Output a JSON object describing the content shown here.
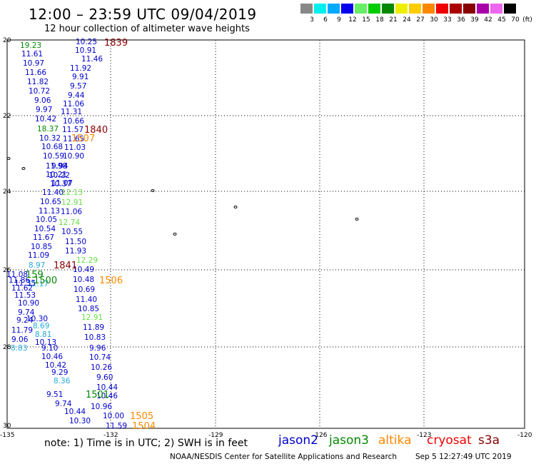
{
  "header": {
    "title": "12:00 – 23:59 UTC 09/04/2019",
    "subtitle": "12 hour collection of altimeter wave heights"
  },
  "legend": {
    "unit": "(ft)",
    "bins": [
      {
        "label": "3",
        "color": "#888888"
      },
      {
        "label": "6",
        "color": "#00eeee"
      },
      {
        "label": "9",
        "color": "#00aaff"
      },
      {
        "label": "12",
        "color": "#0000ee"
      },
      {
        "label": "15",
        "color": "#66ee66"
      },
      {
        "label": "18",
        "color": "#00cc00"
      },
      {
        "label": "21",
        "color": "#008800"
      },
      {
        "label": "24",
        "color": "#eeee00"
      },
      {
        "label": "27",
        "color": "#ffcc00"
      },
      {
        "label": "30",
        "color": "#ff8800"
      },
      {
        "label": "33",
        "color": "#ee0000"
      },
      {
        "label": "36",
        "color": "#aa0000"
      },
      {
        "label": "39",
        "color": "#880000"
      },
      {
        "label": "42",
        "color": "#aa00aa"
      },
      {
        "label": "45",
        "color": "#ee66ee"
      },
      {
        "label": "70",
        "color": "#000000"
      }
    ]
  },
  "axes": {
    "lon_ticks": [
      "-135",
      "-132",
      "-129",
      "-126",
      "-123",
      "-120"
    ],
    "lat_ticks": [
      "20",
      "22",
      "24",
      "26",
      "28",
      "30"
    ]
  },
  "colors": {
    "jason2": "#0000cc",
    "jason3": "#008800",
    "altika": "#ff8800",
    "cryosat": "#cc0000",
    "s3a": "#880000",
    "light_green": "#66dd44",
    "cyan": "#22aadd"
  },
  "track_times": [
    {
      "text": "1839",
      "sat": "s3a"
    },
    {
      "text": "1840",
      "sat": "s3a"
    },
    {
      "text": "1507",
      "sat": "altika"
    },
    {
      "text": "1841",
      "sat": "s3a"
    },
    {
      "text": "1506",
      "sat": "altika"
    },
    {
      "text": "1500",
      "sat": "jason3"
    },
    {
      "text": "159",
      "sat": "jason3"
    },
    {
      "text": "1501",
      "sat": "jason3"
    },
    {
      "text": "1505",
      "sat": "altika"
    },
    {
      "text": "1504",
      "sat": "altika"
    }
  ],
  "wave_heights": [
    {
      "v": "19.23",
      "c": "jason3"
    },
    {
      "v": "10.25",
      "c": "jason2"
    },
    {
      "v": "11.61",
      "c": "jason2"
    },
    {
      "v": "10.91",
      "c": "jason2"
    },
    {
      "v": "10.97",
      "c": "jason2"
    },
    {
      "v": "11.46",
      "c": "jason2"
    },
    {
      "v": "11.66",
      "c": "jason2"
    },
    {
      "v": "11.92",
      "c": "jason2"
    },
    {
      "v": "11.82",
      "c": "jason2"
    },
    {
      "v": "9.91",
      "c": "jason2"
    },
    {
      "v": "10.72",
      "c": "jason2"
    },
    {
      "v": "9.57",
      "c": "jason2"
    },
    {
      "v": "9.06",
      "c": "jason2"
    },
    {
      "v": "9.44",
      "c": "jason2"
    },
    {
      "v": "9.97",
      "c": "jason2"
    },
    {
      "v": "11.06",
      "c": "jason2"
    },
    {
      "v": "11.31",
      "c": "jason2"
    },
    {
      "v": "10.42",
      "c": "jason2"
    },
    {
      "v": "10.66",
      "c": "jason2"
    },
    {
      "v": "18.37",
      "c": "jason3"
    },
    {
      "v": "11.57",
      "c": "jason2"
    },
    {
      "v": "10.32",
      "c": "jason2"
    },
    {
      "v": "11.65",
      "c": "jason2"
    },
    {
      "v": "10.68",
      "c": "jason2"
    },
    {
      "v": "11.03",
      "c": "jason2"
    },
    {
      "v": "10.59",
      "c": "jason2"
    },
    {
      "v": "10.90",
      "c": "jason2"
    },
    {
      "v": "11.98",
      "c": "jason2"
    },
    {
      "v": "9.94",
      "c": "jason2"
    },
    {
      "v": "10.21",
      "c": "jason2"
    },
    {
      "v": "10.22",
      "c": "jason2"
    },
    {
      "v": "10.37",
      "c": "jason2"
    },
    {
      "v": "11.07",
      "c": "jason2"
    },
    {
      "v": "11.40",
      "c": "jason2"
    },
    {
      "v": "12.13",
      "c": "light_green"
    },
    {
      "v": "10.65",
      "c": "jason2"
    },
    {
      "v": "12.91",
      "c": "light_green"
    },
    {
      "v": "11.13",
      "c": "jason2"
    },
    {
      "v": "11.06",
      "c": "jason2"
    },
    {
      "v": "10.05",
      "c": "jason2"
    },
    {
      "v": "12.74",
      "c": "light_green"
    },
    {
      "v": "10.54",
      "c": "jason2"
    },
    {
      "v": "10.55",
      "c": "jason2"
    },
    {
      "v": "11.67",
      "c": "jason2"
    },
    {
      "v": "11.50",
      "c": "jason2"
    },
    {
      "v": "10.85",
      "c": "jason2"
    },
    {
      "v": "11.93",
      "c": "jason2"
    },
    {
      "v": "11.09",
      "c": "jason2"
    },
    {
      "v": "12.29",
      "c": "light_green"
    },
    {
      "v": "8.97",
      "c": "cyan"
    },
    {
      "v": "10.49",
      "c": "jason2"
    },
    {
      "v": "11.08",
      "c": "jason2"
    },
    {
      "v": "11.86",
      "c": "jason2"
    },
    {
      "v": "10.48",
      "c": "jason2"
    },
    {
      "v": "11.17",
      "c": "cyan"
    },
    {
      "v": "11.62",
      "c": "jason2"
    },
    {
      "v": "10.69",
      "c": "jason2"
    },
    {
      "v": "11.53",
      "c": "jason2"
    },
    {
      "v": "11.40",
      "c": "jason2"
    },
    {
      "v": "10.90",
      "c": "jason2"
    },
    {
      "v": "10.85",
      "c": "jason2"
    },
    {
      "v": "9.74",
      "c": "jason2"
    },
    {
      "v": "12.91",
      "c": "light_green"
    },
    {
      "v": "10.30",
      "c": "jason2"
    },
    {
      "v": "9.24",
      "c": "jason2"
    },
    {
      "v": "8.69",
      "c": "cyan"
    },
    {
      "v": "11.89",
      "c": "jason2"
    },
    {
      "v": "11.79",
      "c": "jason2"
    },
    {
      "v": "8.81",
      "c": "cyan"
    },
    {
      "v": "10.83",
      "c": "jason2"
    },
    {
      "v": "9.06",
      "c": "jason2"
    },
    {
      "v": "10.13",
      "c": "jason2"
    },
    {
      "v": "8.83",
      "c": "cyan"
    },
    {
      "v": "9.10",
      "c": "jason2"
    },
    {
      "v": "9.96",
      "c": "jason2"
    },
    {
      "v": "10.46",
      "c": "jason2"
    },
    {
      "v": "10.74",
      "c": "jason2"
    },
    {
      "v": "10.42",
      "c": "jason2"
    },
    {
      "v": "10.26",
      "c": "jason2"
    },
    {
      "v": "9.29",
      "c": "jason2"
    },
    {
      "v": "9.60",
      "c": "jason2"
    },
    {
      "v": "8.36",
      "c": "cyan"
    },
    {
      "v": "10.44",
      "c": "jason2"
    },
    {
      "v": "9.51",
      "c": "jason2"
    },
    {
      "v": "10.46",
      "c": "jason2"
    },
    {
      "v": "9.74",
      "c": "jason2"
    },
    {
      "v": "10.96",
      "c": "jason2"
    },
    {
      "v": "10.44",
      "c": "jason2"
    },
    {
      "v": "10.30",
      "c": "jason2"
    },
    {
      "v": "10.00",
      "c": "jason2"
    },
    {
      "v": "11.59",
      "c": "jason2"
    },
    {
      "v": "11.35",
      "c": "jason2"
    }
  ],
  "footer": {
    "note": "note: 1) Time is in UTC; 2) SWH is in feet",
    "satellites": [
      {
        "name": "jason2",
        "color": "#0000cc"
      },
      {
        "name": "jason3",
        "color": "#008800"
      },
      {
        "name": "altika",
        "color": "#ff8800"
      },
      {
        "name": "cryosat",
        "color": "#ee0000"
      },
      {
        "name": "s3a",
        "color": "#880000"
      }
    ],
    "credit": "NOAA/NESDIS Center for Satellite Applications and Research",
    "timestamp": "Sep  5 12:27:49 UTC 2019"
  }
}
